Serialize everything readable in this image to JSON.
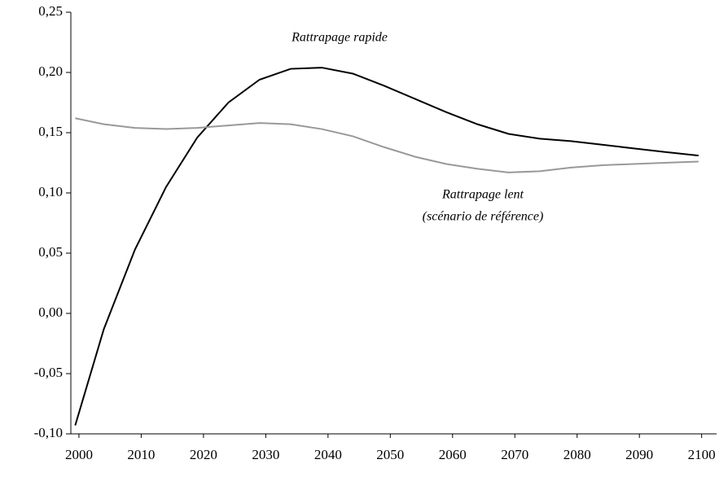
{
  "chart_data": {
    "type": "line",
    "x": [
      1999.4,
      2004,
      2009,
      2014,
      2019,
      2024,
      2029,
      2034,
      2039,
      2044,
      2049,
      2054,
      2059,
      2064,
      2069,
      2074,
      2079,
      2084,
      2089,
      2094,
      2099.5
    ],
    "series": [
      {
        "color": "#000000",
        "values": [
          -0.093,
          -0.013,
          0.053,
          0.105,
          0.146,
          0.175,
          0.194,
          0.203,
          0.204,
          0.199,
          0.189,
          0.178,
          0.167,
          0.157,
          0.149,
          0.145,
          0.143,
          0.14,
          0.137,
          0.134,
          0.131
        ]
      },
      {
        "color": "#999999",
        "values": [
          0.162,
          0.157,
          0.154,
          0.153,
          0.154,
          0.156,
          0.158,
          0.157,
          0.153,
          0.147,
          0.138,
          0.13,
          0.124,
          0.12,
          0.117,
          0.118,
          0.121,
          0.123,
          0.124,
          0.125,
          0.126
        ]
      }
    ],
    "annotations": [
      "Rattrapage rapide",
      "Rattrapage lent",
      "(scénario de référence)"
    ],
    "xlim": [
      1998.7,
      2102.4
    ],
    "xticks": [
      2000,
      2010,
      2020,
      2030,
      2040,
      2050,
      2060,
      2070,
      2080,
      2090,
      2100
    ],
    "ylim": [
      -0.1,
      0.25
    ],
    "yticks": [
      {
        "value": -0.1,
        "label": "-0,10"
      },
      {
        "value": -0.05,
        "label": "-0,05"
      },
      {
        "value": 0,
        "label": "0,00"
      },
      {
        "value": 0.05,
        "label": "0,05"
      },
      {
        "value": 0.1,
        "label": "0,10"
      },
      {
        "value": 0.15,
        "label": "0,15"
      },
      {
        "value": 0.2,
        "label": "0,20"
      },
      {
        "value": 0.25,
        "label": "0,25"
      }
    ],
    "grid": false
  }
}
